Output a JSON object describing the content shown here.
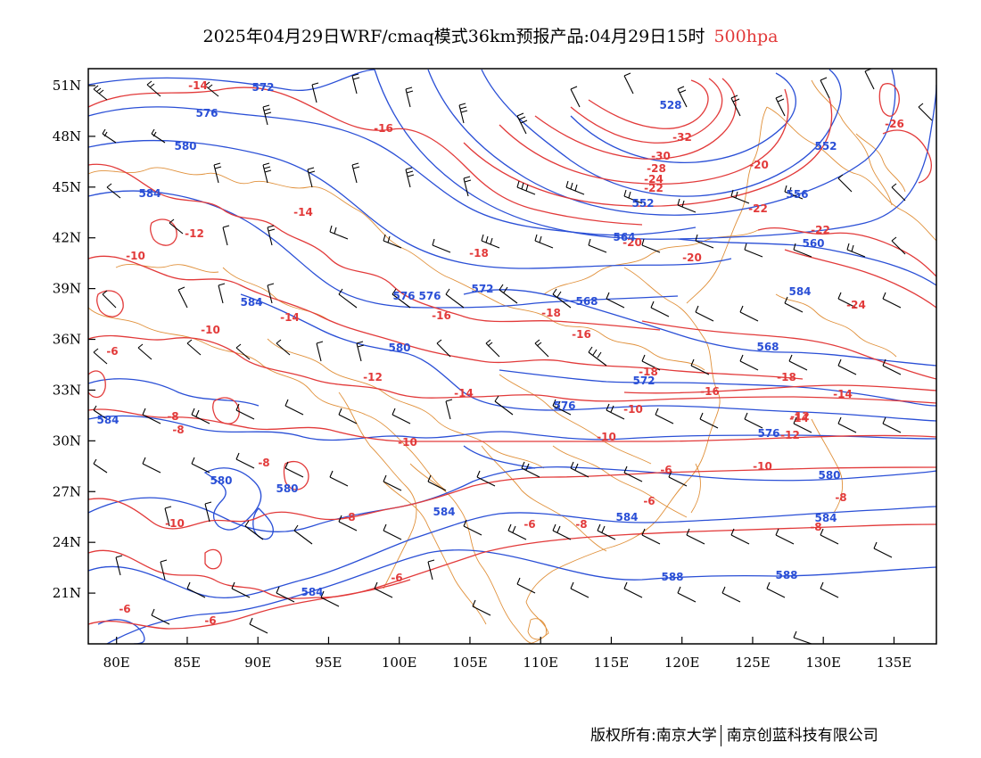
{
  "header": {
    "title": "2025年04月29日WRF/cmaq模式36km预报产品:04月29日15时",
    "level": "500hpa"
  },
  "map": {
    "lon_range": [
      78,
      138
    ],
    "lat_range": [
      18,
      52
    ],
    "lon_ticks": [
      "80E",
      "85E",
      "90E",
      "95E",
      "100E",
      "105E",
      "110E",
      "115E",
      "120E",
      "125E",
      "130E",
      "135E"
    ],
    "lat_ticks": [
      "51N",
      "48N",
      "45N",
      "42N",
      "39N",
      "36N",
      "33N",
      "30N",
      "27N",
      "24N",
      "21N"
    ],
    "fields": [
      "temperature contours (red, °C)",
      "geopotential height contours (blue, dagpm)",
      "wind barbs (black)",
      "province/coast boundaries (orange)"
    ],
    "colors": {
      "temperature": "#e23a3a",
      "height": "#2a4fd6",
      "wind": "#000000",
      "boundary": "#e0903a"
    },
    "temperature_labels": [
      "-14",
      "-16",
      "-14",
      "-12",
      "-10",
      "-14",
      "-10",
      "-6",
      "-12",
      "-8",
      "-8",
      "-8",
      "-10",
      "-10",
      "-8",
      "-6",
      "-6",
      "-8",
      "-6",
      "-6",
      "-6",
      "-10",
      "-16",
      "-18",
      "-16",
      "-14",
      "-10",
      "-8",
      "-32",
      "-30",
      "-28",
      "-24",
      "-22",
      "-20",
      "-18",
      "-16",
      "-14",
      "-12",
      "-10",
      "-8",
      "-6",
      "-22",
      "-22",
      "-20",
      "-18",
      "-14",
      "-12",
      "-26",
      "-18",
      "-20",
      "-24"
    ],
    "height_labels": [
      "572",
      "576",
      "580",
      "584",
      "584",
      "584",
      "580",
      "580",
      "584",
      "576",
      "580",
      "576",
      "572",
      "576",
      "568",
      "528",
      "552",
      "552",
      "556",
      "560",
      "564",
      "584",
      "568",
      "572",
      "576",
      "580",
      "584",
      "588",
      "588",
      "584",
      "584"
    ]
  },
  "footer": {
    "credit_left": "版权所有:南京大学",
    "credit_right": "南京创蓝科技有限公司"
  }
}
